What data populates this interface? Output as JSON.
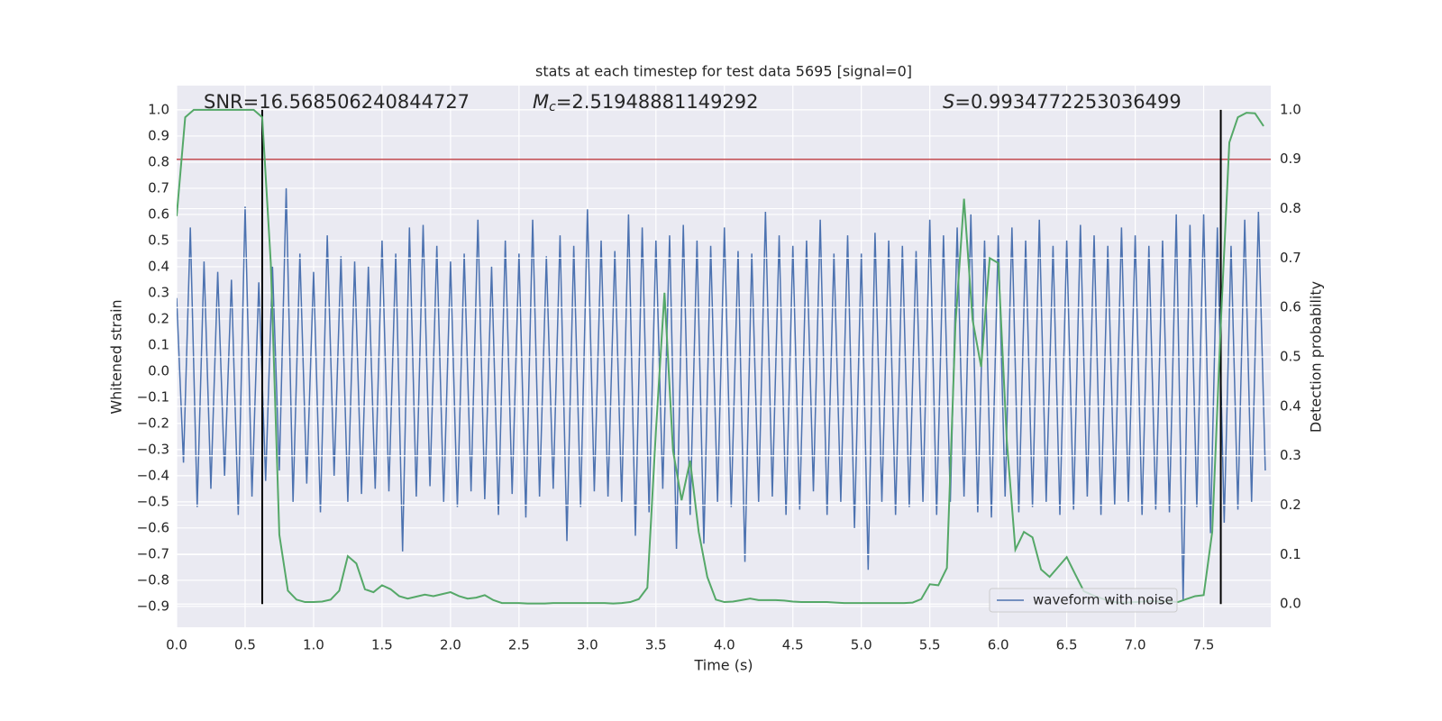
{
  "chart_data": {
    "type": "line",
    "title": "stats at each timestep for test data 5695 [signal=0]",
    "xlabel": "Time (s)",
    "ylabel": "Whitened strain",
    "y2label": "Detection probability",
    "annotations": [
      {
        "text": "SNR=16.568506240844727"
      },
      {
        "symbol": "M",
        "subscript": "c",
        "text": "=2.51948881149292"
      },
      {
        "symbol": "S",
        "text": "=0.9934772253036499"
      }
    ],
    "xlim": [
      0,
      7.99
    ],
    "ylim": [
      -0.98,
      1.093
    ],
    "y2lim": [
      -0.047,
      1.049
    ],
    "xticks": [
      {
        "value": 0,
        "label": "0.0"
      },
      {
        "value": 0.5,
        "label": "0.5"
      },
      {
        "value": 1,
        "label": "1.0"
      },
      {
        "value": 1.5,
        "label": "1.5"
      },
      {
        "value": 2,
        "label": "2.0"
      },
      {
        "value": 2.5,
        "label": "2.5"
      },
      {
        "value": 3,
        "label": "3.0"
      },
      {
        "value": 3.5,
        "label": "3.5"
      },
      {
        "value": 4,
        "label": "4.0"
      },
      {
        "value": 4.5,
        "label": "4.5"
      },
      {
        "value": 5,
        "label": "5.0"
      },
      {
        "value": 5.5,
        "label": "5.5"
      },
      {
        "value": 6,
        "label": "6.0"
      },
      {
        "value": 6.5,
        "label": "6.5"
      },
      {
        "value": 7,
        "label": "7.0"
      },
      {
        "value": 7.5,
        "label": "7.5"
      }
    ],
    "yticks": [
      {
        "value": -0.9,
        "label": "−0.9"
      },
      {
        "value": -0.8,
        "label": "−0.8"
      },
      {
        "value": -0.7,
        "label": "−0.7"
      },
      {
        "value": -0.6,
        "label": "−0.6"
      },
      {
        "value": -0.5,
        "label": "−0.5"
      },
      {
        "value": -0.4,
        "label": "−0.4"
      },
      {
        "value": -0.3,
        "label": "−0.3"
      },
      {
        "value": -0.2,
        "label": "−0.2"
      },
      {
        "value": -0.1,
        "label": "−0.1"
      },
      {
        "value": 0,
        "label": "0.0"
      },
      {
        "value": 0.1,
        "label": "0.1"
      },
      {
        "value": 0.2,
        "label": "0.2"
      },
      {
        "value": 0.3,
        "label": "0.3"
      },
      {
        "value": 0.4,
        "label": "0.4"
      },
      {
        "value": 0.5,
        "label": "0.5"
      },
      {
        "value": 0.6,
        "label": "0.6"
      },
      {
        "value": 0.7,
        "label": "0.7"
      },
      {
        "value": 0.8,
        "label": "0.8"
      },
      {
        "value": 0.9,
        "label": "0.9"
      },
      {
        "value": 1,
        "label": "1.0"
      }
    ],
    "y2ticks": [
      {
        "value": 0,
        "label": "0.0"
      },
      {
        "value": 0.1,
        "label": "0.1"
      },
      {
        "value": 0.2,
        "label": "0.2"
      },
      {
        "value": 0.3,
        "label": "0.3"
      },
      {
        "value": 0.4,
        "label": "0.4"
      },
      {
        "value": 0.5,
        "label": "0.5"
      },
      {
        "value": 0.6,
        "label": "0.6"
      },
      {
        "value": 0.7,
        "label": "0.7"
      },
      {
        "value": 0.8,
        "label": "0.8"
      },
      {
        "value": 0.9,
        "label": "0.9"
      },
      {
        "value": 1,
        "label": "1.0"
      }
    ],
    "grid": true,
    "legend": "lower right",
    "hline": {
      "value": 0.9,
      "axis": "y2",
      "color": "#c44e52"
    },
    "vlines": {
      "x": [
        0.625,
        7.625
      ],
      "ymin": 0,
      "ymax": 1,
      "axis": "y2",
      "color": "#000000"
    },
    "series": [
      {
        "name": "waveform with noise",
        "color": "#4c72b0",
        "x": [
          0,
          0.05,
          0.1,
          0.15,
          0.2,
          0.25,
          0.3,
          0.35,
          0.4,
          0.45,
          0.5,
          0.55,
          0.6,
          0.65,
          0.7,
          0.75,
          0.8,
          0.85,
          0.9,
          0.95,
          1,
          1.05,
          1.1,
          1.15,
          1.2,
          1.25,
          1.3,
          1.35,
          1.4,
          1.45,
          1.5,
          1.55,
          1.6,
          1.65,
          1.7,
          1.75,
          1.8,
          1.85,
          1.9,
          1.95,
          2,
          2.05,
          2.1,
          2.15,
          2.2,
          2.25,
          2.3,
          2.35,
          2.4,
          2.45,
          2.5,
          2.55,
          2.6,
          2.65,
          2.7,
          2.75,
          2.8,
          2.85,
          2.9,
          2.95,
          3,
          3.05,
          3.1,
          3.15,
          3.2,
          3.25,
          3.3,
          3.35,
          3.4,
          3.45,
          3.5,
          3.55,
          3.6,
          3.65,
          3.7,
          3.75,
          3.8,
          3.85,
          3.9,
          3.95,
          4,
          4.05,
          4.1,
          4.15,
          4.2,
          4.25,
          4.3,
          4.35,
          4.4,
          4.45,
          4.5,
          4.55,
          4.6,
          4.65,
          4.7,
          4.75,
          4.8,
          4.85,
          4.9,
          4.95,
          5,
          5.05,
          5.1,
          5.15,
          5.2,
          5.25,
          5.3,
          5.35,
          5.4,
          5.45,
          5.5,
          5.55,
          5.6,
          5.65,
          5.7,
          5.75,
          5.8,
          5.85,
          5.9,
          5.95,
          6,
          6.05,
          6.1,
          6.15,
          6.2,
          6.25,
          6.3,
          6.35,
          6.4,
          6.45,
          6.5,
          6.55,
          6.6,
          6.65,
          6.7,
          6.75,
          6.8,
          6.85,
          6.9,
          6.95,
          7,
          7.05,
          7.1,
          7.15,
          7.2,
          7.25,
          7.3,
          7.35,
          7.4,
          7.45,
          7.5,
          7.55,
          7.6,
          7.65,
          7.7,
          7.75,
          7.8,
          7.85,
          7.9,
          7.95
        ],
        "values": [
          0.28,
          -0.35,
          0.55,
          -0.52,
          0.42,
          -0.45,
          0.38,
          -0.4,
          0.35,
          -0.55,
          0.63,
          -0.48,
          0.34,
          -0.42,
          0.4,
          -0.38,
          0.7,
          -0.5,
          0.45,
          -0.43,
          0.38,
          -0.54,
          0.52,
          -0.4,
          0.44,
          -0.5,
          0.42,
          -0.47,
          0.4,
          -0.45,
          0.5,
          -0.46,
          0.45,
          -0.69,
          0.55,
          -0.48,
          0.56,
          -0.44,
          0.48,
          -0.5,
          0.42,
          -0.52,
          0.45,
          -0.46,
          0.58,
          -0.49,
          0.4,
          -0.55,
          0.5,
          -0.47,
          0.45,
          -0.56,
          0.58,
          -0.48,
          0.44,
          -0.45,
          0.52,
          -0.65,
          0.48,
          -0.52,
          0.62,
          -0.46,
          0.5,
          -0.48,
          0.46,
          -0.5,
          0.6,
          -0.63,
          0.55,
          -0.54,
          0.5,
          -0.45,
          0.52,
          -0.68,
          0.56,
          -0.55,
          0.5,
          -0.66,
          0.48,
          -0.5,
          0.55,
          -0.52,
          0.46,
          -0.73,
          0.45,
          -0.5,
          0.61,
          -0.48,
          0.52,
          -0.55,
          0.48,
          -0.53,
          0.5,
          -0.46,
          0.58,
          -0.55,
          0.45,
          -0.5,
          0.52,
          -0.6,
          0.45,
          -0.76,
          0.53,
          -0.5,
          0.5,
          -0.55,
          0.48,
          -0.52,
          0.46,
          -0.5,
          0.58,
          -0.55,
          0.52,
          -0.5,
          0.55,
          -0.48,
          0.6,
          -0.54,
          0.5,
          -0.56,
          0.52,
          -0.48,
          0.55,
          -0.54,
          0.5,
          -0.52,
          0.58,
          -0.5,
          0.48,
          -0.55,
          0.5,
          -0.53,
          0.56,
          -0.48,
          0.52,
          -0.55,
          0.48,
          -0.51,
          0.55,
          -0.5,
          0.52,
          -0.55,
          0.48,
          -0.53,
          0.5,
          -0.54,
          0.6,
          -0.88,
          0.56,
          -0.52,
          0.6,
          -0.62,
          0.55,
          -0.58,
          0.48,
          -0.53,
          0.58,
          -0.5,
          0.61,
          -0.38
        ]
      },
      {
        "color": "#55a868",
        "axis": "y2",
        "x": [
          0,
          0.0625,
          0.125,
          0.1875,
          0.25,
          0.3125,
          0.375,
          0.4375,
          0.5,
          0.5625,
          0.625,
          0.6875,
          0.75,
          0.8125,
          0.875,
          0.9375,
          1,
          1.0625,
          1.125,
          1.1875,
          1.25,
          1.3125,
          1.375,
          1.4375,
          1.5,
          1.5625,
          1.625,
          1.6875,
          1.75,
          1.8125,
          1.875,
          1.9375,
          2,
          2.0625,
          2.125,
          2.1875,
          2.25,
          2.3125,
          2.375,
          2.4375,
          2.5,
          2.5625,
          2.625,
          2.6875,
          2.75,
          2.8125,
          2.875,
          2.9375,
          3,
          3.0625,
          3.125,
          3.1875,
          3.25,
          3.3125,
          3.375,
          3.4375,
          3.5,
          3.5625,
          3.625,
          3.6875,
          3.75,
          3.8125,
          3.875,
          3.9375,
          4,
          4.0625,
          4.125,
          4.1875,
          4.25,
          4.3125,
          4.375,
          4.4375,
          4.5,
          4.5625,
          4.625,
          4.6875,
          4.75,
          4.8125,
          4.875,
          4.9375,
          5,
          5.0625,
          5.125,
          5.1875,
          5.25,
          5.3125,
          5.375,
          5.4375,
          5.5,
          5.5625,
          5.625,
          5.6875,
          5.75,
          5.8125,
          5.875,
          5.9375,
          6,
          6.0625,
          6.125,
          6.1875,
          6.25,
          6.3125,
          6.375,
          6.4375,
          6.5,
          6.5625,
          6.625,
          6.6875,
          6.75,
          6.8125,
          6.875,
          6.9375,
          7,
          7.0625,
          7.125,
          7.1875,
          7.25,
          7.3125,
          7.375,
          7.4375,
          7.5,
          7.5625,
          7.625,
          7.6875,
          7.75,
          7.8125,
          7.875,
          7.9375
        ],
        "values": [
          0.785,
          0.985,
          1.0,
          1.0,
          1.0,
          1.0,
          1.0,
          1.0,
          1.0,
          1.0,
          0.985,
          0.69,
          0.14,
          0.027,
          0.009,
          0.004,
          0.004,
          0.005,
          0.009,
          0.027,
          0.097,
          0.082,
          0.03,
          0.024,
          0.038,
          0.03,
          0.016,
          0.011,
          0.015,
          0.019,
          0.016,
          0.02,
          0.024,
          0.016,
          0.011,
          0.013,
          0.018,
          0.008,
          0.002,
          0.002,
          0.002,
          0.001,
          0.001,
          0.001,
          0.002,
          0.002,
          0.002,
          0.002,
          0.002,
          0.002,
          0.002,
          0.001,
          0.002,
          0.004,
          0.01,
          0.033,
          0.35,
          0.63,
          0.31,
          0.21,
          0.29,
          0.146,
          0.055,
          0.009,
          0.004,
          0.005,
          0.008,
          0.011,
          0.008,
          0.008,
          0.008,
          0.007,
          0.005,
          0.004,
          0.004,
          0.004,
          0.004,
          0.003,
          0.002,
          0.002,
          0.002,
          0.002,
          0.002,
          0.002,
          0.002,
          0.002,
          0.003,
          0.01,
          0.04,
          0.038,
          0.073,
          0.566,
          0.82,
          0.575,
          0.48,
          0.7,
          0.69,
          0.33,
          0.11,
          0.146,
          0.135,
          0.07,
          0.055,
          0.075,
          0.095,
          0.06,
          0.026,
          0.018,
          0.012,
          0.006,
          0.003,
          0.003,
          0.004,
          0.005,
          0.006,
          0.005,
          0.005,
          0.004,
          0.01,
          0.016,
          0.018,
          0.146,
          0.566,
          0.934,
          0.985,
          0.994,
          0.993,
          0.967
        ]
      }
    ]
  }
}
